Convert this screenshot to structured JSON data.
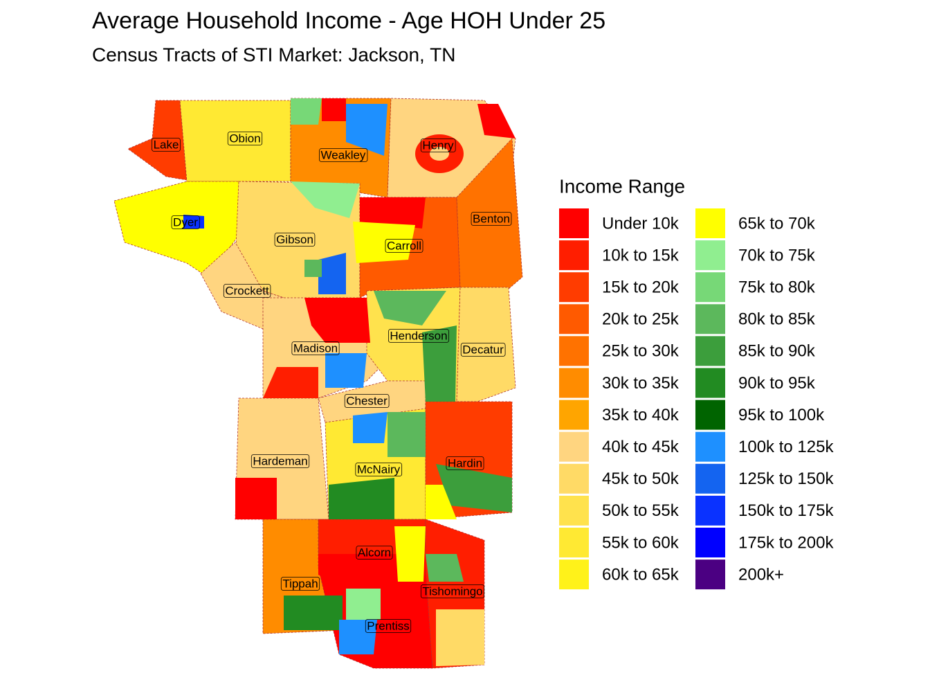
{
  "header": {
    "title": "Average Household Income - Age HOH Under 25",
    "subtitle": "Census Tracts of STI Market: Jackson, TN"
  },
  "legend": {
    "title": "Income Range",
    "items": [
      {
        "label": "Under 10k",
        "color": "#FF0000"
      },
      {
        "label": "10k to 15k",
        "color": "#FF1E00"
      },
      {
        "label": "15k to 20k",
        "color": "#FF3C00"
      },
      {
        "label": "20k to 25k",
        "color": "#FF5A00"
      },
      {
        "label": "25k to 30k",
        "color": "#FF7200"
      },
      {
        "label": "30k to 35k",
        "color": "#FF8C00"
      },
      {
        "label": "35k to 40k",
        "color": "#FFA500"
      },
      {
        "label": "40k to 45k",
        "color": "#FFD580"
      },
      {
        "label": "45k to 50k",
        "color": "#FFDA66"
      },
      {
        "label": "50k to 55k",
        "color": "#FFE24D"
      },
      {
        "label": "55k to 60k",
        "color": "#FFE933"
      },
      {
        "label": "60k to 65k",
        "color": "#FFF21A"
      },
      {
        "label": "65k to 70k",
        "color": "#FFFF00"
      },
      {
        "label": "70k to 75k",
        "color": "#90EE90"
      },
      {
        "label": "75k to 80k",
        "color": "#77D877"
      },
      {
        "label": "80k to 85k",
        "color": "#5CB85C"
      },
      {
        "label": "85k to 90k",
        "color": "#3C9E3C"
      },
      {
        "label": "90k to 95k",
        "color": "#228B22"
      },
      {
        "label": "95k to 100k",
        "color": "#006400"
      },
      {
        "label": "100k to 125k",
        "color": "#1E90FF"
      },
      {
        "label": "125k to 150k",
        "color": "#1464F0"
      },
      {
        "label": "150k to 175k",
        "color": "#0A32FF"
      },
      {
        "label": "175k to 200k",
        "color": "#0000FF"
      },
      {
        "label": "200k+",
        "color": "#4B0082"
      }
    ]
  },
  "counties": [
    {
      "label": "Lake",
      "fill": "#FF3C00"
    },
    {
      "label": "Obion",
      "fill": "#FFE933"
    },
    {
      "label": "Weakley",
      "fill": "#FF8C00"
    },
    {
      "label": "Henry",
      "fill": "#FFD580"
    },
    {
      "label": "Dyer",
      "fill": "#FFFF00"
    },
    {
      "label": "Gibson",
      "fill": "#FFDA66"
    },
    {
      "label": "Carroll",
      "fill": "#FF5A00"
    },
    {
      "label": "Benton",
      "fill": "#FF7200"
    },
    {
      "label": "Crockett",
      "fill": "#FFD580"
    },
    {
      "label": "Madison",
      "fill": "#FFD580"
    },
    {
      "label": "Henderson",
      "fill": "#FFE24D"
    },
    {
      "label": "Decatur",
      "fill": "#FFDA66"
    },
    {
      "label": "Chester",
      "fill": "#FFD580"
    },
    {
      "label": "Hardeman",
      "fill": "#FFD580"
    },
    {
      "label": "McNairy",
      "fill": "#FFE933"
    },
    {
      "label": "Hardin",
      "fill": "#FF3C00"
    },
    {
      "label": "Alcorn",
      "fill": "#FF1E00"
    },
    {
      "label": "Tippah",
      "fill": "#FF8C00"
    },
    {
      "label": "Tishomingo",
      "fill": "#FF1E00"
    },
    {
      "label": "Prentiss",
      "fill": "#FF0000"
    }
  ]
}
